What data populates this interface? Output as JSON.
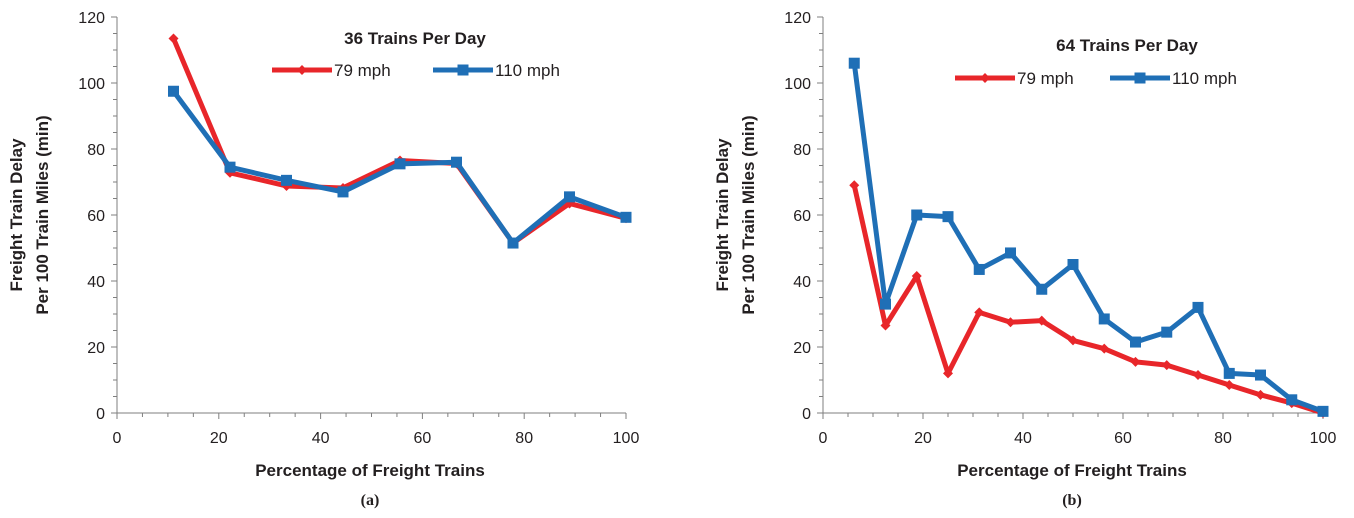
{
  "colors": {
    "series_79": "#e8262a",
    "series_110": "#1f6fb6",
    "axis": "#7f7f7f"
  },
  "chart_data": [
    {
      "type": "line",
      "panel_label": "(a)",
      "title": "36 Trains Per Day",
      "xlabel": "Percentage of Freight Trains",
      "ylabel_line1": "Freight Train Delay",
      "ylabel_line2": "Per 100 Train Miles (min)",
      "xlim": [
        0,
        100
      ],
      "ylim": [
        0,
        120
      ],
      "xticks": [
        0,
        20,
        40,
        60,
        80,
        100
      ],
      "yticks": [
        0,
        20,
        40,
        60,
        80,
        100,
        120
      ],
      "x_minor_step": 5,
      "y_minor_step": 5,
      "grid": false,
      "legend_placement": "top",
      "series": [
        {
          "name": "79 mph",
          "marker": "diamond",
          "x": [
            11.1,
            22.2,
            33.3,
            44.4,
            55.6,
            66.7,
            77.8,
            88.9,
            100
          ],
          "y": [
            113.5,
            72.8,
            68.8,
            68.2,
            76.5,
            75.6,
            51.5,
            63.5,
            59.0
          ]
        },
        {
          "name": "110 mph",
          "marker": "square",
          "x": [
            11.1,
            22.2,
            33.3,
            44.4,
            55.6,
            66.7,
            77.8,
            88.9,
            100
          ],
          "y": [
            97.5,
            74.5,
            70.5,
            67.0,
            75.5,
            76.0,
            51.5,
            65.5,
            59.3
          ]
        }
      ]
    },
    {
      "type": "line",
      "panel_label": "(b)",
      "title": "64 Trains Per Day",
      "xlabel": "Percentage of Freight Trains",
      "ylabel_line1": "Freight Train Delay",
      "ylabel_line2": "Per 100 Train Miles (min)",
      "xlim": [
        0,
        100
      ],
      "ylim": [
        0,
        120
      ],
      "xticks": [
        0,
        20,
        40,
        60,
        80,
        100
      ],
      "yticks": [
        0,
        20,
        40,
        60,
        80,
        100,
        120
      ],
      "x_minor_step": 5,
      "y_minor_step": 5,
      "grid": false,
      "legend_placement": "top",
      "series": [
        {
          "name": "79 mph",
          "marker": "diamond",
          "x": [
            6.25,
            12.5,
            18.75,
            25,
            31.25,
            37.5,
            43.75,
            50,
            56.25,
            62.5,
            68.75,
            75,
            81.25,
            87.5,
            93.75,
            100
          ],
          "y": [
            69.0,
            26.5,
            41.5,
            12.0,
            30.5,
            27.5,
            28.0,
            22.0,
            19.5,
            15.5,
            14.5,
            11.5,
            8.5,
            5.5,
            3.0,
            0.0
          ]
        },
        {
          "name": "110 mph",
          "marker": "square",
          "x": [
            6.25,
            12.5,
            18.75,
            25,
            31.25,
            37.5,
            43.75,
            50,
            56.25,
            62.5,
            68.75,
            75,
            81.25,
            87.5,
            93.75,
            100
          ],
          "y": [
            106.0,
            33.0,
            60.0,
            59.5,
            43.5,
            48.5,
            37.5,
            45.0,
            28.5,
            21.5,
            24.5,
            32.0,
            12.0,
            11.5,
            4.0,
            0.5
          ]
        }
      ]
    }
  ]
}
